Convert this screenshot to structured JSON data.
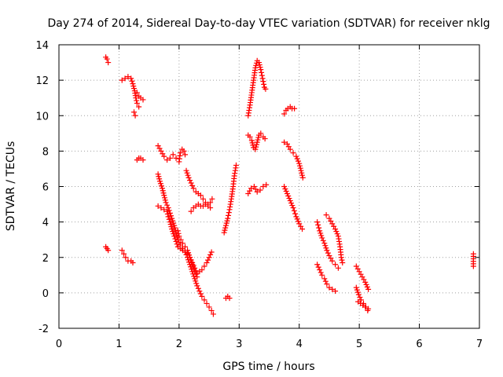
{
  "chart_data": {
    "type": "scatter",
    "title": "Day 274 of 2014, Sidereal Day-to-day VTEC variation (SDTVAR) for receiver nklg",
    "xlabel": "GPS time / hours",
    "ylabel": "SDTVAR / TECUs",
    "xlim": [
      0,
      7
    ],
    "ylim": [
      -2,
      14
    ],
    "xticks": [
      0,
      1,
      2,
      3,
      4,
      5,
      6,
      7
    ],
    "yticks": [
      -2,
      0,
      2,
      4,
      6,
      8,
      10,
      12,
      14
    ],
    "grid": true,
    "marker": "plus",
    "color": "#ff0000",
    "segments": [
      [
        [
          0.78,
          13.3
        ],
        [
          0.8,
          13.2
        ],
        [
          0.82,
          13.0
        ]
      ],
      [
        [
          0.78,
          2.6
        ],
        [
          0.8,
          2.5
        ],
        [
          0.82,
          2.4
        ]
      ],
      [
        [
          1.05,
          12.0
        ],
        [
          1.1,
          12.1
        ],
        [
          1.15,
          12.2
        ],
        [
          1.2,
          12.1
        ],
        [
          1.23,
          11.8
        ],
        [
          1.26,
          11.4
        ],
        [
          1.28,
          11.0
        ],
        [
          1.3,
          10.7
        ],
        [
          1.33,
          10.5
        ]
      ],
      [
        [
          1.25,
          10.2
        ],
        [
          1.27,
          10.0
        ]
      ],
      [
        [
          1.3,
          11.3
        ],
        [
          1.33,
          11.1
        ],
        [
          1.36,
          11.0
        ],
        [
          1.4,
          10.9
        ]
      ],
      [
        [
          1.05,
          2.4
        ],
        [
          1.08,
          2.2
        ],
        [
          1.11,
          2.0
        ],
        [
          1.15,
          1.8
        ],
        [
          1.2,
          1.8
        ],
        [
          1.23,
          1.7
        ]
      ],
      [
        [
          1.3,
          7.5
        ],
        [
          1.33,
          7.6
        ],
        [
          1.36,
          7.6
        ],
        [
          1.4,
          7.5
        ]
      ],
      [
        [
          1.65,
          8.3
        ],
        [
          1.7,
          8.0
        ],
        [
          1.75,
          7.7
        ],
        [
          1.8,
          7.5
        ],
        [
          1.85,
          7.6
        ],
        [
          1.9,
          7.8
        ],
        [
          1.95,
          7.6
        ],
        [
          2.0,
          7.4
        ],
        [
          2.02,
          7.9
        ],
        [
          2.05,
          8.1
        ],
        [
          2.08,
          8.0
        ],
        [
          2.1,
          7.8
        ]
      ],
      [
        [
          1.65,
          6.7
        ],
        [
          1.68,
          6.3
        ],
        [
          1.72,
          5.9
        ],
        [
          1.75,
          5.5
        ],
        [
          1.78,
          5.1
        ],
        [
          1.82,
          4.8
        ],
        [
          1.85,
          4.5
        ],
        [
          1.88,
          4.2
        ],
        [
          1.92,
          3.8
        ],
        [
          1.95,
          3.4
        ],
        [
          1.98,
          3.0
        ],
        [
          2.02,
          2.7
        ],
        [
          2.05,
          2.5
        ],
        [
          2.1,
          2.3
        ],
        [
          2.14,
          2.2
        ],
        [
          2.18,
          2.0
        ],
        [
          2.22,
          1.7
        ],
        [
          2.26,
          1.4
        ],
        [
          2.3,
          1.1
        ],
        [
          2.34,
          1.2
        ],
        [
          2.38,
          1.3
        ],
        [
          2.42,
          1.5
        ],
        [
          2.46,
          1.7
        ],
        [
          2.5,
          2.0
        ],
        [
          2.54,
          2.3
        ]
      ],
      [
        [
          1.65,
          4.9
        ],
        [
          1.7,
          4.8
        ],
        [
          1.75,
          4.7
        ],
        [
          1.8,
          4.6
        ],
        [
          1.82,
          4.3
        ],
        [
          1.85,
          4.0
        ],
        [
          1.88,
          3.6
        ],
        [
          1.92,
          3.2
        ],
        [
          1.95,
          2.9
        ],
        [
          1.98,
          2.6
        ],
        [
          2.02,
          2.5
        ],
        [
          2.06,
          2.4
        ],
        [
          2.1,
          2.3
        ],
        [
          2.14,
          2.0
        ],
        [
          2.18,
          1.6
        ],
        [
          2.22,
          1.2
        ],
        [
          2.26,
          0.8
        ],
        [
          2.3,
          0.4
        ],
        [
          2.34,
          0.1
        ],
        [
          2.38,
          -0.2
        ],
        [
          2.42,
          -0.4
        ],
        [
          2.46,
          -0.6
        ],
        [
          2.5,
          -0.8
        ],
        [
          2.54,
          -1.0
        ],
        [
          2.57,
          -1.2
        ]
      ],
      [
        [
          1.98,
          3.5
        ],
        [
          2.0,
          3.2
        ],
        [
          2.03,
          3.0
        ],
        [
          2.06,
          2.8
        ],
        [
          2.1,
          2.6
        ],
        [
          2.14,
          2.4
        ],
        [
          2.18,
          2.0
        ],
        [
          2.22,
          1.6
        ],
        [
          2.26,
          1.2
        ],
        [
          2.3,
          0.9
        ]
      ],
      [
        [
          2.12,
          6.9
        ],
        [
          2.16,
          6.5
        ],
        [
          2.2,
          6.2
        ],
        [
          2.24,
          5.9
        ],
        [
          2.28,
          5.7
        ],
        [
          2.32,
          5.6
        ],
        [
          2.36,
          5.5
        ],
        [
          2.4,
          5.3
        ],
        [
          2.44,
          5.1
        ],
        [
          2.48,
          5.0
        ],
        [
          2.52,
          5.1
        ],
        [
          2.55,
          5.3
        ]
      ],
      [
        [
          2.2,
          4.6
        ],
        [
          2.24,
          4.8
        ],
        [
          2.28,
          4.9
        ],
        [
          2.32,
          5.0
        ],
        [
          2.36,
          4.9
        ],
        [
          2.4,
          4.9
        ],
        [
          2.44,
          5.0
        ],
        [
          2.48,
          4.9
        ],
        [
          2.52,
          4.8
        ]
      ],
      [
        [
          2.75,
          3.4
        ],
        [
          2.78,
          3.8
        ],
        [
          2.81,
          4.2
        ],
        [
          2.84,
          4.7
        ],
        [
          2.87,
          5.3
        ],
        [
          2.9,
          6.0
        ],
        [
          2.92,
          6.6
        ],
        [
          2.95,
          7.2
        ]
      ],
      [
        [
          2.78,
          -0.3
        ],
        [
          2.81,
          -0.2
        ],
        [
          2.84,
          -0.3
        ]
      ],
      [
        [
          3.15,
          10.0
        ],
        [
          3.18,
          10.6
        ],
        [
          3.21,
          11.3
        ],
        [
          3.24,
          12.0
        ],
        [
          3.27,
          12.7
        ],
        [
          3.3,
          13.1
        ],
        [
          3.33,
          13.0
        ],
        [
          3.36,
          12.6
        ],
        [
          3.39,
          12.1
        ],
        [
          3.42,
          11.6
        ],
        [
          3.44,
          11.5
        ]
      ],
      [
        [
          3.15,
          8.9
        ],
        [
          3.18,
          8.8
        ],
        [
          3.21,
          8.6
        ],
        [
          3.24,
          8.2
        ],
        [
          3.27,
          8.1
        ],
        [
          3.3,
          8.5
        ],
        [
          3.33,
          8.9
        ],
        [
          3.36,
          9.0
        ],
        [
          3.4,
          8.8
        ],
        [
          3.43,
          8.7
        ]
      ],
      [
        [
          3.15,
          5.6
        ],
        [
          3.2,
          5.9
        ],
        [
          3.25,
          6.0
        ],
        [
          3.3,
          5.7
        ],
        [
          3.35,
          5.8
        ],
        [
          3.4,
          6.0
        ],
        [
          3.45,
          6.1
        ]
      ],
      [
        [
          3.75,
          10.1
        ],
        [
          3.78,
          10.3
        ],
        [
          3.81,
          10.4
        ],
        [
          3.85,
          10.5
        ],
        [
          3.88,
          10.4
        ],
        [
          3.92,
          10.4
        ]
      ],
      [
        [
          3.75,
          8.5
        ],
        [
          3.8,
          8.4
        ],
        [
          3.85,
          8.1
        ],
        [
          3.9,
          7.9
        ],
        [
          3.95,
          7.7
        ],
        [
          4.0,
          7.3
        ],
        [
          4.03,
          6.9
        ],
        [
          4.06,
          6.5
        ]
      ],
      [
        [
          3.75,
          6.0
        ],
        [
          3.8,
          5.6
        ],
        [
          3.85,
          5.2
        ],
        [
          3.9,
          4.8
        ],
        [
          3.95,
          4.3
        ],
        [
          4.0,
          3.9
        ],
        [
          4.05,
          3.6
        ]
      ],
      [
        [
          4.3,
          4.0
        ],
        [
          4.34,
          3.5
        ],
        [
          4.38,
          3.1
        ],
        [
          4.42,
          2.8
        ],
        [
          4.46,
          2.4
        ],
        [
          4.5,
          2.1
        ],
        [
          4.55,
          1.8
        ],
        [
          4.6,
          1.6
        ],
        [
          4.65,
          1.4
        ]
      ],
      [
        [
          4.3,
          1.6
        ],
        [
          4.34,
          1.3
        ],
        [
          4.38,
          1.0
        ],
        [
          4.42,
          0.8
        ],
        [
          4.46,
          0.5
        ],
        [
          4.5,
          0.3
        ],
        [
          4.55,
          0.2
        ],
        [
          4.6,
          0.1
        ]
      ],
      [
        [
          4.45,
          4.4
        ],
        [
          4.5,
          4.2
        ],
        [
          4.55,
          3.9
        ],
        [
          4.6,
          3.6
        ],
        [
          4.65,
          3.2
        ],
        [
          4.68,
          2.6
        ],
        [
          4.7,
          2.0
        ],
        [
          4.72,
          1.7
        ]
      ],
      [
        [
          4.95,
          1.5
        ],
        [
          5.0,
          1.2
        ],
        [
          5.05,
          0.9
        ],
        [
          5.1,
          0.6
        ],
        [
          5.15,
          0.2
        ]
      ],
      [
        [
          4.95,
          0.3
        ],
        [
          4.99,
          -0.1
        ],
        [
          5.03,
          -0.4
        ],
        [
          5.07,
          -0.6
        ],
        [
          5.11,
          -0.8
        ],
        [
          5.15,
          -0.9
        ]
      ],
      [
        [
          4.98,
          -0.5
        ],
        [
          5.02,
          -0.6
        ],
        [
          5.06,
          -0.7
        ],
        [
          5.1,
          -0.8
        ],
        [
          5.14,
          -1.0
        ]
      ],
      [
        [
          6.9,
          2.2
        ],
        [
          6.9,
          1.5
        ]
      ]
    ]
  }
}
